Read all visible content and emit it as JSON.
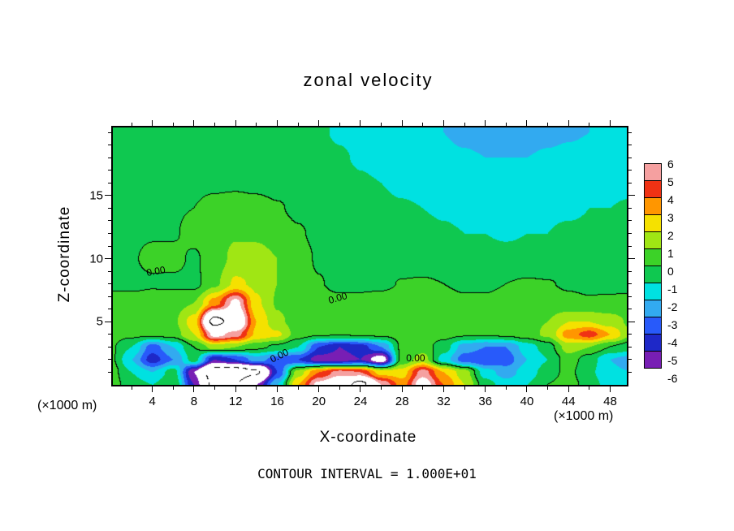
{
  "axes": {
    "x": {
      "label": "X-coordinate",
      "unit_left": "(×1000 m)",
      "unit_right": "(×1000 m)",
      "major_ticks": [
        4,
        8,
        12,
        16,
        20,
        24,
        28,
        32,
        36,
        40,
        44,
        48
      ],
      "minor_step": 2
    },
    "z": {
      "label": "Z-coordinate",
      "major_ticks": [
        5,
        10,
        15
      ],
      "minor_step": 1
    }
  },
  "colorbar": {
    "tick_labels": [
      6,
      5,
      4,
      3,
      2,
      1,
      0,
      -1,
      -2,
      -3,
      -4,
      -5,
      -6
    ]
  },
  "chart_data": {
    "type": "heatmap",
    "title": "zonal velocity",
    "xlabel": "X-coordinate",
    "zlabel": "Z-coordinate",
    "caption": "CONTOUR INTERVAL = 1.000E+01",
    "contour_interval": 10,
    "contour_levels_drawn": [
      -10,
      0,
      10
    ],
    "x_range": [
      0.2,
      49.6
    ],
    "z_range": [
      0,
      20.4
    ],
    "x": [
      0,
      2,
      4,
      6,
      8,
      10,
      12,
      14,
      16,
      18,
      20,
      22,
      24,
      26,
      28,
      30,
      32,
      34,
      36,
      38,
      40,
      42,
      44,
      46,
      48,
      50
    ],
    "z": [
      20,
      18,
      16,
      14,
      12,
      10,
      8,
      6.5,
      5,
      4,
      3,
      2,
      1,
      0
    ],
    "values": [
      [
        -0.3,
        -0.3,
        -0.3,
        -0.3,
        -0.4,
        -0.4,
        -0.5,
        -0.5,
        -0.6,
        -0.7,
        -0.9,
        -1.1,
        -1.3,
        -1.5,
        -1.7,
        -1.9,
        -2.0,
        -2.2,
        -2.3,
        -2.3,
        -2.3,
        -2.2,
        -2.1,
        -2.0,
        -1.9,
        -1.8
      ],
      [
        -0.3,
        -0.3,
        -0.3,
        -0.3,
        -0.3,
        -0.4,
        -0.4,
        -0.4,
        -0.5,
        -0.6,
        -0.7,
        -0.9,
        -1.1,
        -1.3,
        -1.5,
        -1.6,
        -1.8,
        -1.9,
        -2.0,
        -2.0,
        -2.0,
        -1.9,
        -1.8,
        -1.7,
        -1.6,
        -1.6
      ],
      [
        -0.3,
        -0.3,
        -0.2,
        -0.2,
        -0.2,
        -0.2,
        -0.2,
        -0.3,
        -0.4,
        -0.5,
        -0.6,
        -0.7,
        -0.9,
        -1.0,
        -1.2,
        -1.3,
        -1.4,
        -1.5,
        -1.5,
        -1.5,
        -1.5,
        -1.4,
        -1.4,
        -1.3,
        -1.2,
        -1.2
      ],
      [
        -0.3,
        -0.3,
        -0.2,
        -0.1,
        0.0,
        0.3,
        0.5,
        0.4,
        0.1,
        -0.2,
        -0.4,
        -0.5,
        -0.7,
        -0.8,
        -0.9,
        -1.0,
        -1.1,
        -1.2,
        -1.2,
        -1.2,
        -1.2,
        -1.1,
        -1.1,
        -1.0,
        -1.0,
        -0.9
      ],
      [
        -0.2,
        -0.2,
        -0.1,
        -0.1,
        0.3,
        0.6,
        0.9,
        0.8,
        0.5,
        0.1,
        -0.2,
        -0.4,
        -0.5,
        -0.6,
        -0.7,
        -0.8,
        -0.9,
        -1.0,
        -1.0,
        -1.1,
        -1.0,
        -1.0,
        -0.9,
        -0.9,
        -0.8,
        -0.8
      ],
      [
        -0.3,
        -0.1,
        0.25,
        0.3,
        -0.15,
        0.5,
        1.3,
        1.5,
        1.0,
        0.4,
        -0.1,
        -0.3,
        -0.4,
        -0.5,
        -0.5,
        -0.5,
        -0.6,
        -0.6,
        -0.7,
        -0.7,
        -0.7,
        -0.7,
        -0.6,
        -0.6,
        -0.6,
        -0.5
      ],
      [
        -0.3,
        -0.3,
        -0.15,
        -0.2,
        -0.3,
        0.8,
        2.2,
        1.8,
        1.0,
        0.4,
        0.05,
        -0.2,
        -0.25,
        -0.2,
        0.05,
        0.1,
        0.0,
        -0.2,
        -0.2,
        0.0,
        0.1,
        0.05,
        -0.1,
        -0.2,
        -0.3,
        -0.3
      ],
      [
        0.5,
        0.5,
        0.6,
        0.6,
        1.0,
        3.5,
        6.5,
        2.2,
        0.9,
        0.5,
        0.3,
        0.2,
        0.3,
        0.4,
        0.5,
        0.6,
        0.4,
        0.2,
        0.2,
        0.4,
        0.5,
        0.4,
        0.2,
        0.1,
        0.2,
        0.3
      ],
      [
        0.6,
        0.6,
        0.7,
        0.8,
        2.5,
        11.0,
        8.5,
        3.0,
        1.2,
        0.6,
        0.4,
        0.3,
        0.4,
        0.5,
        0.6,
        0.7,
        0.5,
        0.3,
        0.3,
        0.5,
        0.8,
        1.0,
        2.0,
        2.0,
        1.5,
        0.8
      ],
      [
        0.4,
        0.3,
        0.3,
        0.5,
        2.0,
        6.5,
        5.5,
        2.8,
        2.2,
        0.5,
        0.2,
        0.1,
        0.2,
        0.3,
        0.4,
        0.5,
        0.4,
        0.2,
        0.1,
        0.3,
        0.6,
        1.2,
        3.5,
        4.5,
        3.0,
        1.0
      ],
      [
        0.2,
        -1.0,
        -3.5,
        -2.0,
        0.0,
        1.5,
        1.0,
        0.3,
        -0.2,
        -1.0,
        -4.0,
        -5.0,
        -4.5,
        -3.0,
        0.2,
        0.5,
        -0.5,
        -2.5,
        -3.0,
        -3.0,
        -1.5,
        -0.5,
        1.5,
        1.0,
        0.0,
        -0.5
      ],
      [
        0.3,
        -2.0,
        -4.5,
        -3.0,
        -0.5,
        -5.0,
        -4.0,
        -2.5,
        -3.5,
        -4.0,
        -5.5,
        -5.5,
        -5.0,
        -7.0,
        0.3,
        1.5,
        -1.5,
        -3.5,
        -4.0,
        -3.5,
        -2.0,
        -1.0,
        0.5,
        -0.5,
        -2.0,
        -2.5
      ],
      [
        0.5,
        -1.0,
        -2.0,
        -0.5,
        -6.0,
        -12.0,
        -12.0,
        -10.5,
        -4.0,
        1.5,
        4.0,
        5.5,
        5.0,
        2.5,
        2.5,
        5.5,
        3.0,
        1.5,
        -1.5,
        -2.5,
        -1.5,
        -0.5,
        0.3,
        -0.8,
        -1.8,
        -2.0
      ],
      [
        0.5,
        -0.5,
        -1.0,
        0.0,
        -5.0,
        -11.0,
        -10.0,
        -6.0,
        -2.0,
        3.0,
        6.5,
        8.0,
        11.0,
        6.0,
        3.5,
        7.0,
        4.0,
        2.0,
        -0.5,
        -1.5,
        -1.0,
        0.0,
        0.5,
        -0.5,
        -1.5,
        -1.5
      ]
    ],
    "fill_levels": [
      -6,
      -5,
      -4,
      -3,
      -2,
      -1,
      0,
      1,
      2,
      3,
      4,
      5,
      6
    ],
    "fill_colors": [
      "#781EB4",
      "#1E28C8",
      "#285AFA",
      "#32AAF0",
      "#00E1E1",
      "#0FC850",
      "#3CD228",
      "#A0E614",
      "#F5E100",
      "#FF9600",
      "#F03214",
      "#F5A0A0"
    ],
    "out_of_range_color": "#FFFFFF",
    "contour_labels": [
      {
        "text": "0.00",
        "x": 4.3,
        "z": 9.0
      },
      {
        "text": "0.00",
        "x": 21.8,
        "z": 6.9
      },
      {
        "text": "0.00",
        "x": 16.2,
        "z": 2.3
      },
      {
        "text": "0.00",
        "x": 29.3,
        "z": 2.1
      }
    ]
  }
}
